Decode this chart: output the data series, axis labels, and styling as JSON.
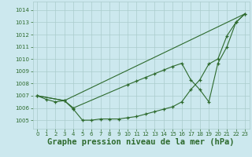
{
  "background_color": "#cce8ee",
  "grid_color": "#aacccc",
  "line_color": "#2d6a2d",
  "xlabel": "Graphe pression niveau de la mer (hPa)",
  "xlabel_fontsize": 7.5,
  "ylim": [
    1004.3,
    1014.7
  ],
  "xlim": [
    -0.5,
    23.5
  ],
  "yticks": [
    1005,
    1006,
    1007,
    1008,
    1009,
    1010,
    1011,
    1012,
    1013,
    1014
  ],
  "xticks": [
    0,
    1,
    2,
    3,
    4,
    5,
    6,
    7,
    8,
    9,
    10,
    11,
    12,
    13,
    14,
    15,
    16,
    17,
    18,
    19,
    20,
    21,
    22,
    23
  ],
  "line1_x": [
    0,
    1,
    2,
    3,
    4,
    5,
    6,
    7,
    8,
    9,
    10,
    11,
    12,
    13,
    14,
    15,
    16,
    17,
    18,
    19,
    20,
    21,
    22,
    23
  ],
  "line1_y": [
    1007.0,
    1006.7,
    1006.5,
    1006.6,
    1005.9,
    1005.0,
    1005.0,
    1005.1,
    1005.1,
    1005.1,
    1005.2,
    1005.3,
    1005.5,
    1005.7,
    1005.9,
    1006.1,
    1006.5,
    1007.5,
    1008.3,
    1009.6,
    1010.0,
    1011.9,
    1013.0,
    1013.7
  ],
  "line2_x": [
    0,
    3,
    4,
    10,
    11,
    12,
    13,
    14,
    15,
    16,
    17,
    18,
    19,
    20,
    21,
    22,
    23
  ],
  "line2_y": [
    1007.0,
    1006.6,
    1006.0,
    1007.9,
    1008.2,
    1008.5,
    1008.8,
    1009.1,
    1009.4,
    1009.65,
    1008.3,
    1007.5,
    1006.5,
    1009.65,
    1011.0,
    1013.0,
    1013.7
  ],
  "line3_x": [
    0,
    3,
    23
  ],
  "line3_y": [
    1007.0,
    1006.6,
    1013.7
  ]
}
